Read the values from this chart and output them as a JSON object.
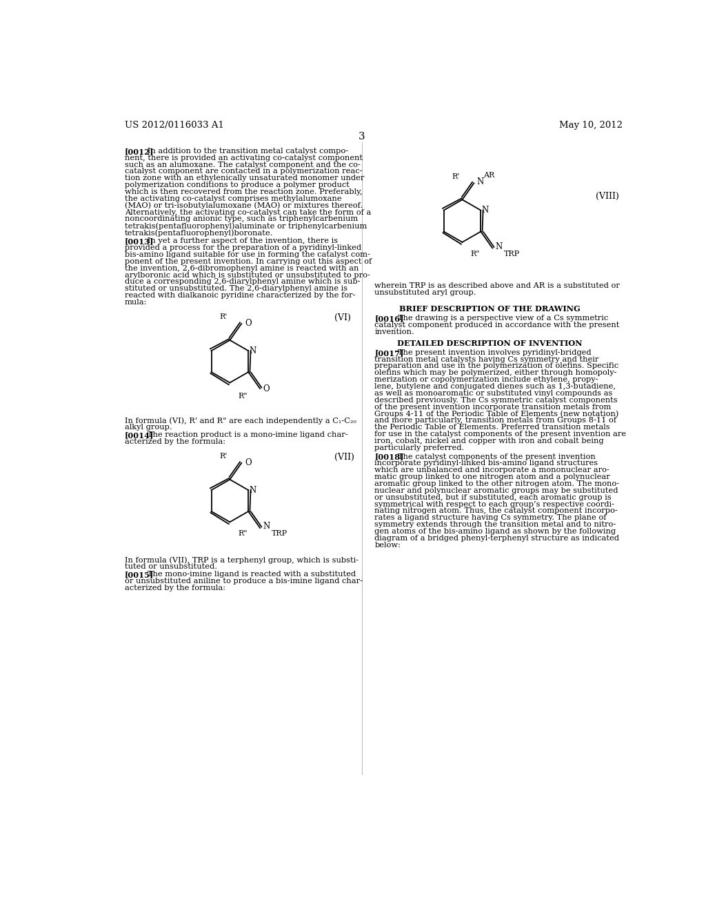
{
  "bg_color": "#ffffff",
  "header_left": "US 2012/0116033 A1",
  "header_right": "May 10, 2012",
  "page_number": "3",
  "formula_VI_label": "(VI)",
  "formula_VII_label": "(VII)",
  "formula_VIII_label": "(VIII)"
}
